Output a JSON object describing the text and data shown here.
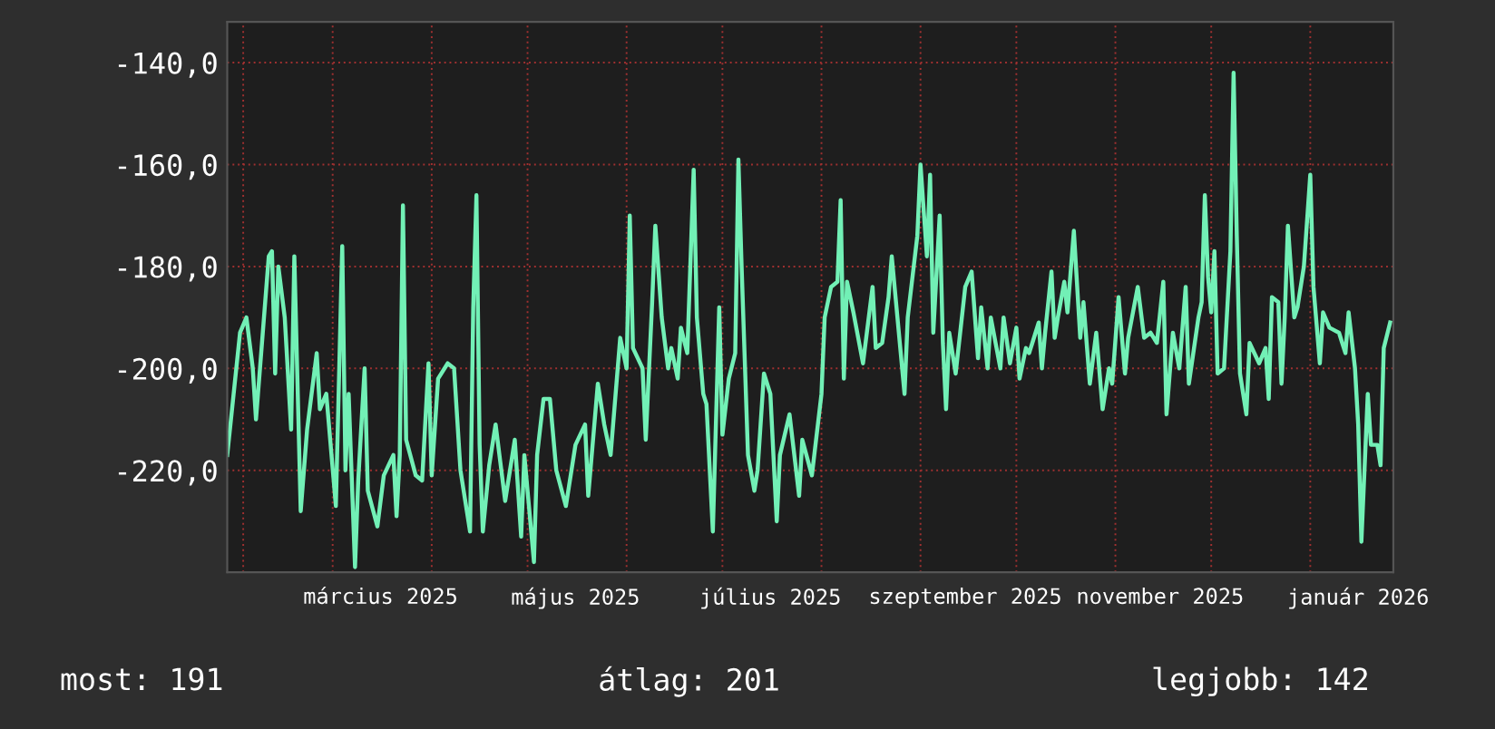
{
  "chart_data": {
    "type": "line",
    "x": [
      "2025-01-27",
      "2025-01-31",
      "2025-02-02",
      "2025-02-04",
      "2025-02-05",
      "2025-02-09",
      "2025-02-10",
      "2025-02-11",
      "2025-02-12",
      "2025-02-14",
      "2025-02-16",
      "2025-02-17",
      "2025-02-19",
      "2025-02-21",
      "2025-02-24",
      "2025-02-25",
      "2025-02-27",
      "2025-03-02",
      "2025-03-04",
      "2025-03-05",
      "2025-03-06",
      "2025-03-08",
      "2025-03-09",
      "2025-03-11",
      "2025-03-12",
      "2025-03-15",
      "2025-03-17",
      "2025-03-20",
      "2025-03-21",
      "2025-03-22",
      "2025-03-23",
      "2025-03-24",
      "2025-03-27",
      "2025-03-29",
      "2025-03-31",
      "2025-04-01",
      "2025-04-03",
      "2025-04-06",
      "2025-04-08",
      "2025-04-10",
      "2025-04-12",
      "2025-04-13",
      "2025-04-14",
      "2025-04-15",
      "2025-04-16",
      "2025-04-17",
      "2025-04-19",
      "2025-04-21",
      "2025-04-24",
      "2025-04-27",
      "2025-04-29",
      "2025-04-30",
      "2025-05-03",
      "2025-05-04",
      "2025-05-06",
      "2025-05-08",
      "2025-05-10",
      "2025-05-13",
      "2025-05-16",
      "2025-05-19",
      "2025-05-20",
      "2025-05-23",
      "2025-05-25",
      "2025-05-27",
      "2025-05-30",
      "2025-06-01",
      "2025-06-02",
      "2025-06-03",
      "2025-06-06",
      "2025-06-07",
      "2025-06-09",
      "2025-06-10",
      "2025-06-12",
      "2025-06-14",
      "2025-06-15",
      "2025-06-17",
      "2025-06-18",
      "2025-06-20",
      "2025-06-22",
      "2025-06-23",
      "2025-06-25",
      "2025-06-26",
      "2025-06-28",
      "2025-06-30",
      "2025-07-01",
      "2025-07-03",
      "2025-07-05",
      "2025-07-06",
      "2025-07-07",
      "2025-07-09",
      "2025-07-11",
      "2025-07-12",
      "2025-07-14",
      "2025-07-16",
      "2025-07-18",
      "2025-07-19",
      "2025-07-22",
      "2025-07-25",
      "2025-07-26",
      "2025-07-29",
      "2025-08-01",
      "2025-08-02",
      "2025-08-04",
      "2025-08-06",
      "2025-08-07",
      "2025-08-08",
      "2025-08-09",
      "2025-08-11",
      "2025-08-14",
      "2025-08-17",
      "2025-08-18",
      "2025-08-20",
      "2025-08-22",
      "2025-08-23",
      "2025-08-27",
      "2025-08-28",
      "2025-08-31",
      "2025-09-01",
      "2025-09-03",
      "2025-09-04",
      "2025-09-05",
      "2025-09-07",
      "2025-09-08",
      "2025-09-09",
      "2025-09-10",
      "2025-09-12",
      "2025-09-15",
      "2025-09-17",
      "2025-09-19",
      "2025-09-20",
      "2025-09-22",
      "2025-09-23",
      "2025-09-26",
      "2025-09-27",
      "2025-09-29",
      "2025-10-01",
      "2025-10-02",
      "2025-10-04",
      "2025-10-05",
      "2025-10-06",
      "2025-10-08",
      "2025-10-09",
      "2025-10-10",
      "2025-10-12",
      "2025-10-13",
      "2025-10-14",
      "2025-10-16",
      "2025-10-17",
      "2025-10-19",
      "2025-10-21",
      "2025-10-22",
      "2025-10-24",
      "2025-10-26",
      "2025-10-28",
      "2025-10-30",
      "2025-10-31",
      "2025-11-02",
      "2025-11-04",
      "2025-11-05",
      "2025-11-08",
      "2025-11-10",
      "2025-11-12",
      "2025-11-14",
      "2025-11-16",
      "2025-11-17",
      "2025-11-19",
      "2025-11-21",
      "2025-11-23",
      "2025-11-24",
      "2025-11-27",
      "2025-11-28",
      "2025-11-29",
      "2025-11-30",
      "2025-12-01",
      "2025-12-02",
      "2025-12-03",
      "2025-12-05",
      "2025-12-07",
      "2025-12-08",
      "2025-12-09",
      "2025-12-10",
      "2025-12-12",
      "2025-12-13",
      "2025-12-16",
      "2025-12-18",
      "2025-12-19",
      "2025-12-20",
      "2025-12-22",
      "2025-12-23",
      "2025-12-24",
      "2025-12-25",
      "2025-12-27",
      "2025-12-28",
      "2025-12-30",
      "2026-01-01",
      "2026-01-02",
      "2026-01-04",
      "2026-01-05",
      "2026-01-07",
      "2026-01-10",
      "2026-01-11",
      "2026-01-12",
      "2026-01-13",
      "2026-01-15",
      "2026-01-16",
      "2026-01-17",
      "2026-01-19",
      "2026-01-20",
      "2026-01-22",
      "2026-01-23",
      "2026-01-24",
      "2026-01-26"
    ],
    "series": [
      {
        "color": "#72f0b6",
        "values": [
          -217,
          -193,
          -190,
          -200,
          -210,
          -178,
          -177,
          -201,
          -180,
          -190,
          -212,
          -178,
          -228,
          -212,
          -197,
          -208,
          -205,
          -227,
          -176,
          -220,
          -205,
          -239,
          -222,
          -200,
          -224,
          -231,
          -221,
          -217,
          -229,
          -217,
          -168,
          -214,
          -221,
          -222,
          -199,
          -221,
          -202,
          -199,
          -200,
          -220,
          -228,
          -232,
          -188,
          -166,
          -215,
          -232,
          -219,
          -211,
          -226,
          -214,
          -233,
          -217,
          -238,
          -217,
          -206,
          -206,
          -220,
          -227,
          -215,
          -211,
          -225,
          -203,
          -211,
          -217,
          -194,
          -200,
          -170,
          -196,
          -200,
          -214,
          -187,
          -172,
          -190,
          -200,
          -196,
          -202,
          -192,
          -197,
          -161,
          -190,
          -205,
          -207,
          -232,
          -188,
          -213,
          -202,
          -197,
          -159,
          -180,
          -217,
          -224,
          -220,
          -201,
          -205,
          -230,
          -217,
          -209,
          -225,
          -214,
          -221,
          -205,
          -190,
          -184,
          -183,
          -167,
          -202,
          -183,
          -189,
          -199,
          -184,
          -196,
          -195,
          -186,
          -178,
          -205,
          -190,
          -174,
          -160,
          -178,
          -162,
          -193,
          -170,
          -195,
          -208,
          -193,
          -201,
          -184,
          -181,
          -198,
          -188,
          -200,
          -190,
          -200,
          -190,
          -199,
          -192,
          -202,
          -196,
          -197,
          -195,
          -191,
          -200,
          -193,
          -181,
          -194,
          -190,
          -183,
          -189,
          -173,
          -194,
          -187,
          -203,
          -193,
          -208,
          -200,
          -203,
          -186,
          -201,
          -194,
          -184,
          -194,
          -193,
          -195,
          -183,
          -209,
          -193,
          -200,
          -184,
          -203,
          -190,
          -187,
          -166,
          -182,
          -189,
          -177,
          -201,
          -200,
          -177,
          -142,
          -174,
          -201,
          -209,
          -195,
          -199,
          -196,
          -206,
          -186,
          -187,
          -203,
          -190,
          -172,
          -190,
          -188,
          -180,
          -162,
          -184,
          -199,
          -189,
          -192,
          -193,
          -195,
          -197,
          -189,
          -200,
          -211,
          -234,
          -205,
          -215,
          -215,
          -219,
          -196,
          -191
        ]
      }
    ],
    "xlim": [
      "2025-01-27",
      "2026-01-27"
    ],
    "xticks": [
      {
        "value": "2025-02-01",
        "label": null
      },
      {
        "value": "2025-03-01",
        "label": null
      },
      {
        "value": "2025-04-01",
        "label": null
      },
      {
        "value": "2025-05-01",
        "label": null
      },
      {
        "value": "2025-06-01",
        "label": null
      },
      {
        "value": "2025-07-01",
        "label": null
      },
      {
        "value": "2025-08-01",
        "label": null
      },
      {
        "value": "2025-09-01",
        "label": null
      },
      {
        "value": "2025-10-01",
        "label": null
      },
      {
        "value": "2025-11-01",
        "label": null
      },
      {
        "value": "2025-12-01",
        "label": null
      },
      {
        "value": "2026-01-01",
        "label": null
      },
      {
        "value": "2025-03-16",
        "label": "március 2025"
      },
      {
        "value": "2025-05-16",
        "label": "május 2025"
      },
      {
        "value": "2025-07-16",
        "label": "július 2025"
      },
      {
        "value": "2025-09-15",
        "label": "szeptember 2025"
      },
      {
        "value": "2025-11-15",
        "label": "november 2025"
      },
      {
        "value": "2026-01-16",
        "label": "január 2026"
      }
    ],
    "ylim": [
      -240,
      -132
    ],
    "yticks": [
      {
        "value": -140,
        "label": "-140,0"
      },
      {
        "value": -160,
        "label": "-160,0"
      },
      {
        "value": -180,
        "label": "-180,0"
      },
      {
        "value": -200,
        "label": "-200,0"
      },
      {
        "value": -220,
        "label": "-220,0"
      }
    ],
    "grid": true,
    "annotations": [
      "most: 191",
      "átlag: 201",
      "legjobb: 142"
    ]
  }
}
